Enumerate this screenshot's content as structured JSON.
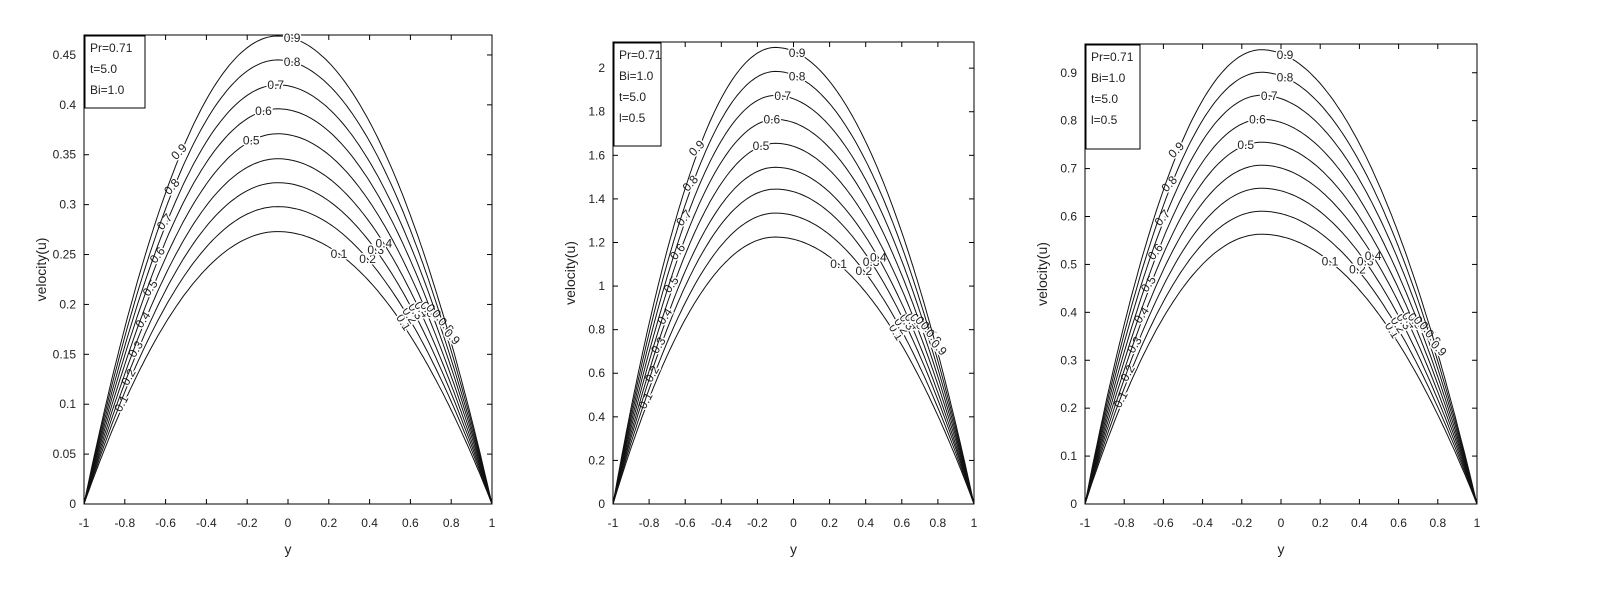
{
  "chart_data": [
    {
      "type": "line",
      "xlabel": "y",
      "ylabel": "velocity(u)",
      "xlim": [
        -1,
        1
      ],
      "ylim": [
        0,
        0.47
      ],
      "xticks": [
        "-1",
        "-0.8",
        "-0.6",
        "-0.4",
        "-0.2",
        "0",
        "0.2",
        "0.4",
        "0.6",
        "0.8",
        "1"
      ],
      "yticks": [
        "0",
        "0.05",
        "0.1",
        "0.15",
        "0.2",
        "0.25",
        "0.3",
        "0.35",
        "0.4",
        "0.45"
      ],
      "legend": [
        "Pr=0.71",
        "t=5.0",
        "Bi=1.0"
      ],
      "legend_position": "top-left",
      "peak_x": -0.05,
      "series": [
        {
          "name": "0.1",
          "peak": 0.273
        },
        {
          "name": "0.2",
          "peak": 0.298
        },
        {
          "name": "0.3",
          "peak": 0.322
        },
        {
          "name": "0.4",
          "peak": 0.346
        },
        {
          "name": "0.5",
          "peak": 0.371
        },
        {
          "name": "0.6",
          "peak": 0.396
        },
        {
          "name": "0.7",
          "peak": 0.42
        },
        {
          "name": "0.8",
          "peak": 0.445
        },
        {
          "name": "0.9",
          "peak": 0.469
        }
      ]
    },
    {
      "type": "line",
      "xlabel": "y",
      "ylabel": "velocity(u)",
      "xlim": [
        -1,
        1
      ],
      "ylim": [
        0,
        2.12
      ],
      "xticks": [
        "-1",
        "-0.8",
        "-0.6",
        "-0.4",
        "-0.2",
        "0",
        "0.2",
        "0.4",
        "0.6",
        "0.8",
        "1"
      ],
      "yticks": [
        "0",
        "0.2",
        "0.4",
        "0.6",
        "0.8",
        "1",
        "1.2",
        "1.4",
        "1.6",
        "1.8",
        "2"
      ],
      "legend": [
        "Pr=0.71",
        "Bi=1.0",
        "t=5.0",
        "l=0.5"
      ],
      "legend_position": "top-left",
      "peak_x": -0.1,
      "series": [
        {
          "name": "0.1",
          "peak": 1.225
        },
        {
          "name": "0.2",
          "peak": 1.335
        },
        {
          "name": "0.3",
          "peak": 1.445
        },
        {
          "name": "0.4",
          "peak": 1.545
        },
        {
          "name": "0.5",
          "peak": 1.655
        },
        {
          "name": "0.6",
          "peak": 1.765
        },
        {
          "name": "0.7",
          "peak": 1.875
        },
        {
          "name": "0.8",
          "peak": 1.985
        },
        {
          "name": "0.9",
          "peak": 2.095
        }
      ]
    },
    {
      "type": "line",
      "xlabel": "y",
      "ylabel": "velocity(u)",
      "xlim": [
        -1,
        1
      ],
      "ylim": [
        0,
        0.96
      ],
      "xticks": [
        "-1",
        "-0.8",
        "-0.6",
        "-0.4",
        "-0.2",
        "0",
        "0.2",
        "0.4",
        "0.6",
        "0.8",
        "1"
      ],
      "yticks": [
        "0",
        "0.1",
        "0.2",
        "0.3",
        "0.4",
        "0.5",
        "0.6",
        "0.7",
        "0.8",
        "0.9"
      ],
      "legend": [
        "Pr=0.71",
        "Bi=1.0",
        "t=5.0",
        "l=0.5"
      ],
      "legend_position": "top-left",
      "peak_x": -0.1,
      "series": [
        {
          "name": "0.1",
          "peak": 0.563
        },
        {
          "name": "0.2",
          "peak": 0.611
        },
        {
          "name": "0.3",
          "peak": 0.659
        },
        {
          "name": "0.4",
          "peak": 0.707
        },
        {
          "name": "0.5",
          "peak": 0.755
        },
        {
          "name": "0.6",
          "peak": 0.803
        },
        {
          "name": "0.7",
          "peak": 0.853
        },
        {
          "name": "0.8",
          "peak": 0.901
        },
        {
          "name": "0.9",
          "peak": 0.948
        }
      ]
    }
  ]
}
